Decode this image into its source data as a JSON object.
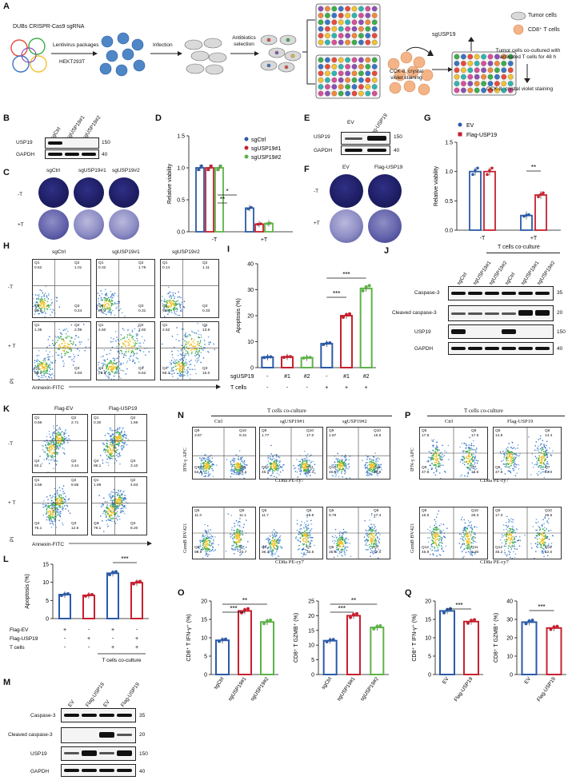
{
  "panel_letters": [
    "A",
    "B",
    "C",
    "D",
    "E",
    "F",
    "G",
    "H",
    "I",
    "J",
    "K",
    "L",
    "M",
    "N",
    "O",
    "P",
    "Q"
  ],
  "A": {
    "title": "DUBs CRISPR-Cas9 sgRNA",
    "lentivirus": "Lentivirus packages",
    "cell_line": "HEKT293T",
    "infection": "Infection",
    "antibiotics": "Antibiotics selection",
    "cck8": "CCK-8, crystal violet staining",
    "sgusp19": "sgUSP19",
    "legend_tumor": "Tumor cells",
    "legend_cd8": "CD8⁺ T cells",
    "coculture_note": "Tumor cells co-cultured with activated T cells for 48 h",
    "final_step": "CCK-8, crystal violet staining",
    "well_colors": [
      "#e84b3c",
      "#f2c230",
      "#3cae4b",
      "#3a74c6",
      "#8e4fb5",
      "#f08a3a",
      "#2fb5b0",
      "#d94f9a"
    ]
  },
  "B": {
    "lanes": [
      "sgCtrl",
      "sgUSP19#1",
      "sgUSP19#2"
    ],
    "rows": [
      "USP19",
      "GAPDH"
    ],
    "markers": [
      "150",
      "40"
    ]
  },
  "C": {
    "cols": [
      "sgCtrl",
      "sgUSP19#1",
      "sgUSP19#2"
    ],
    "rows": [
      "-T",
      "+T"
    ]
  },
  "D": {
    "ylabel": "Relative viability",
    "groups": [
      "-T",
      "+T"
    ],
    "series": [
      "sgCtrl",
      "sgUSP19#1",
      "sgUSP19#2"
    ],
    "values": [
      [
        1.0,
        1.0,
        1.0
      ],
      [
        0.37,
        0.12,
        0.13
      ]
    ],
    "yticks": [
      "0.0",
      "0.5",
      "1.0",
      "1.5"
    ],
    "sig": [
      "**",
      "*"
    ],
    "colors": [
      "#2b5aa8",
      "#c7202f",
      "#5db347"
    ]
  },
  "E": {
    "lanes": [
      "EV",
      "Flag-USP19"
    ],
    "rows": [
      "USP19",
      "GAPDH"
    ],
    "markers": [
      "150",
      "40"
    ]
  },
  "F": {
    "cols": [
      "EV",
      "Flag-USP19"
    ],
    "rows": [
      "-T",
      "+T"
    ]
  },
  "G": {
    "ylabel": "Relative viability",
    "groups": [
      "-T",
      "+T"
    ],
    "series": [
      "EV",
      "Flag-USP19"
    ],
    "values": [
      [
        1.0,
        1.0
      ],
      [
        0.25,
        0.6
      ]
    ],
    "yticks": [
      "0.0",
      "0.5",
      "1.0",
      "1.5"
    ],
    "sig": "**",
    "colors": [
      "#2b5aa8",
      "#c7202f"
    ]
  },
  "H": {
    "cols": [
      "sgCtrl",
      "sgUSP19#1",
      "sgUSP19#2"
    ],
    "rows": [
      "-T",
      "+ T"
    ],
    "xlabel": "Annexin-FITC",
    "ylabel": "PI",
    "quads": [
      "Q1",
      "Q2",
      "Q3",
      "Q4"
    ],
    "values": [
      [
        [
          "0.52",
          "1.01",
          "0.24",
          "98.6"
        ],
        [
          "0.32",
          "1.75",
          "0.31",
          "98.4"
        ],
        [
          "0.14",
          "1.11",
          "0.33",
          "98.4"
        ]
      ],
      [
        [
          "1.35",
          "2.26",
          "4.83",
          "90.1"
        ],
        [
          "4.60",
          "7.92",
          "8.62",
          "78.9"
        ],
        [
          "2.62",
          "13.6",
          "15.0",
          "68.3"
        ]
      ]
    ]
  },
  "I": {
    "ylabel": "Apoptosis (%)",
    "yticks": [
      "0",
      "10",
      "20",
      "30",
      "40"
    ],
    "row1_label": "sgUSP19",
    "row1": [
      "-",
      "#1",
      "#2",
      "-",
      "#1",
      "#2"
    ],
    "row2_label": "T cells",
    "row2": [
      "-",
      "-",
      "-",
      "+",
      "+",
      "+"
    ],
    "values": [
      4.0,
      4.1,
      3.8,
      9.2,
      20.0,
      30.5
    ],
    "sig": [
      "***",
      "***"
    ],
    "colors": [
      "#2b5aa8",
      "#c7202f",
      "#5db347",
      "#2b5aa8",
      "#c7202f",
      "#5db347"
    ]
  },
  "J": {
    "header": "T cells co-culture",
    "lanes": [
      "sgCtrl",
      "sgUSP19#1",
      "sgUSP19#2",
      "sgCtrl",
      "sgUSP19#1",
      "sgUSP19#2"
    ],
    "rows": [
      "Caspase-3",
      "Cleaved caspase-3",
      "USP19",
      "GAPDH"
    ],
    "markers": [
      "35",
      "20",
      "150",
      "40"
    ]
  },
  "K": {
    "cols": [
      "Flag-EV",
      "Flag-USP19"
    ],
    "rows": [
      "-T",
      "+ T"
    ],
    "xlabel": "Annexin-FITC",
    "ylabel": "PI",
    "values": [
      [
        [
          "0.56",
          "2.71",
          "3.44",
          "93.1"
        ],
        [
          "0.30",
          "1.66",
          "3.10",
          "96.1"
        ]
      ],
      [
        [
          "3.58",
          "8.85",
          "12.8",
          "75.1"
        ],
        [
          "1.99",
          "4.83",
          "8.20",
          "79.1"
        ]
      ]
    ]
  },
  "L": {
    "ylabel": "Apoptosis (%)",
    "yticks": [
      "0",
      "5",
      "10",
      "15"
    ],
    "row_labels": [
      "Flag-EV",
      "Flag-USP19",
      "T cells"
    ],
    "rows": [
      [
        "+",
        "-",
        "+",
        "-"
      ],
      [
        "-",
        "+",
        "-",
        "+"
      ],
      [
        "-",
        "-",
        "+",
        "+"
      ]
    ],
    "footer": "T cells co-culture",
    "values": [
      6.6,
      6.4,
      12.5,
      9.9
    ],
    "sig": "***",
    "colors": [
      "#2b5aa8",
      "#c7202f",
      "#2b5aa8",
      "#c7202f"
    ]
  },
  "M": {
    "lanes": [
      "EV",
      "Flag-USP19",
      "EV",
      "Flag-USP19"
    ],
    "rows": [
      "Caspase-3",
      "Cleaved caspase-3",
      "USP19",
      "GAPDH"
    ],
    "markers": [
      "35",
      "20",
      "150",
      "40"
    ]
  },
  "N": {
    "header": "T cells co-culture",
    "cols": [
      "Ctrl",
      "sgUSP19#1",
      "sgUSP19#2"
    ],
    "top_ylabel": "IFN-γ APC",
    "bottom_ylabel": "GzmB BV421",
    "xlabel": "CD8a PE-cy7",
    "top_values": [
      [
        "Q9",
        "Q10",
        "Q11",
        "Q12",
        "3.87",
        "9.31",
        "24.2",
        "62.6"
      ],
      [
        "Q9",
        "Q10",
        "Q11",
        "Q12",
        "1.77",
        "17.0",
        "36.1",
        "45.1"
      ],
      [
        "Q9",
        "Q10",
        "Q11",
        "Q12",
        "1.87",
        "15.5",
        "36.8",
        "45.9"
      ]
    ],
    "bottom_values": [
      [
        "Q5",
        "Q6",
        "Q7",
        "Q8",
        "11.3",
        "11.1",
        "23.7",
        "53.9"
      ],
      [
        "Q5",
        "Q6",
        "Q7",
        "Q8",
        "11.7",
        "19.9",
        "32.5",
        "36.3"
      ],
      [
        "Q5",
        "Q6",
        "Q7",
        "Q8",
        "9.78",
        "17.4",
        "37.0",
        "35.8"
      ]
    ]
  },
  "O": {
    "left": {
      "ylabel": "CD8⁺ T IFN-γ⁺ (%)",
      "yticks": [
        "0",
        "5",
        "10",
        "15",
        "20"
      ],
      "cats": [
        "sgCtrl",
        "sgUSP19#1",
        "sgUSP19#2"
      ],
      "values": [
        9.3,
        17.3,
        14.3
      ],
      "sig": [
        "***",
        "**"
      ]
    },
    "right": {
      "ylabel": "CD8⁺ T GZMB⁺ (%)",
      "yticks": [
        "0",
        "5",
        "10",
        "15",
        "20",
        "25"
      ],
      "cats": [
        "sgCtrl",
        "sgUSP19#1",
        "sgUSP19#2"
      ],
      "values": [
        11.5,
        20.0,
        16.0
      ],
      "sig": [
        "***",
        "**"
      ]
    },
    "colors": [
      "#2b5aa8",
      "#c7202f",
      "#5db347"
    ]
  },
  "P": {
    "header": "T cells co-culture",
    "cols": [
      "Ctrl",
      "Flag-USP19"
    ],
    "top_ylabel": "IFN-γ APC",
    "bottom_ylabel": "GzmB BV421",
    "xlabel": "CD8a PE-cy7",
    "top_values": [
      [
        "Q5",
        "Q6",
        "Q7",
        "Q8",
        "17.8",
        "17.6",
        "16.6",
        "47.8"
      ],
      [
        "Q5",
        "Q6",
        "Q7",
        "Q8",
        "14.8",
        "14.4",
        "23.0",
        "47.8"
      ]
    ],
    "bottom_values": [
      [
        "Q9",
        "Q10",
        "Q11",
        "Q12",
        "16.5",
        "28.3",
        "9.30",
        "45.9"
      ],
      [
        "Q9",
        "Q10",
        "Q11",
        "Q12",
        "17.3",
        "25.5",
        "12.0",
        "45.2"
      ]
    ]
  },
  "Q": {
    "left": {
      "ylabel": "CD8⁺ T IFN-γ⁺ (%)",
      "yticks": [
        "0",
        "5",
        "10",
        "15",
        "20"
      ],
      "cats": [
        "EV",
        "Flag-USP19"
      ],
      "values": [
        17.3,
        14.4
      ],
      "sig": "***"
    },
    "right": {
      "ylabel": "CD8⁺ T GZMB⁺ (%)",
      "yticks": [
        "0",
        "10",
        "20",
        "30",
        "40"
      ],
      "cats": [
        "EV",
        "Flag-USP19"
      ],
      "values": [
        28.5,
        25.3
      ],
      "sig": "***"
    },
    "colors": [
      "#2b5aa8",
      "#c7202f"
    ]
  }
}
